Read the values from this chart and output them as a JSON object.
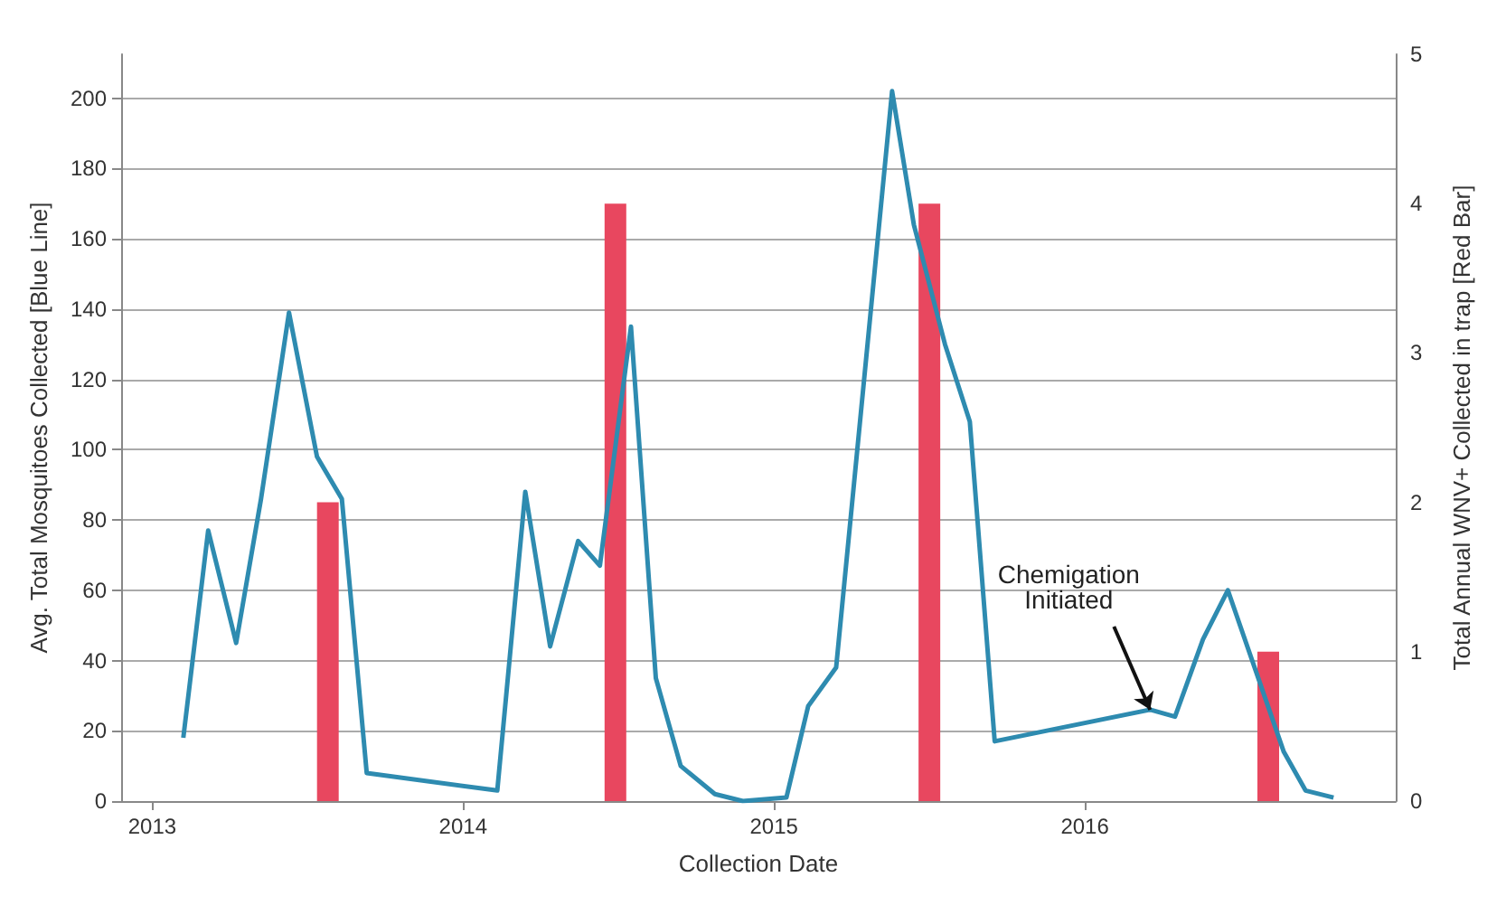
{
  "chart_data": {
    "type": "line",
    "xlabel": "Collection Date",
    "ylabel": "Avg. Total Mosquitoes Collected [Blue Line]",
    "y2label": "Total Annual WNV+ Collected in trap [Red Bar]",
    "xlim": [
      2012.9,
      2017
    ],
    "xticks": [
      {
        "value": 2013,
        "label": "2013"
      },
      {
        "value": 2014,
        "label": "2014"
      },
      {
        "value": 2015,
        "label": "2015"
      },
      {
        "value": 2016,
        "label": "2016"
      }
    ],
    "ylim": [
      0,
      212.5
    ],
    "yticks": [
      0,
      20,
      40,
      60,
      80,
      100,
      120,
      140,
      160,
      180,
      200
    ],
    "y2lim": [
      0,
      5
    ],
    "y2ticks": [
      0,
      1,
      2,
      3,
      4,
      5
    ],
    "grid": "y",
    "marker": "none",
    "line_style": "solid",
    "series": [
      {
        "color": "#2e8bb0",
        "x": [
          2013.1,
          2013.18,
          2013.27,
          2013.35,
          2013.44,
          2013.53,
          2013.61,
          2013.69,
          2014.11,
          2014.2,
          2014.28,
          2014.37,
          2014.44,
          2014.54,
          2014.62,
          2014.7,
          2014.81,
          2014.9,
          2015.04,
          2015.11,
          2015.2,
          2015.38,
          2015.45,
          2015.55,
          2015.63,
          2015.71,
          2016.21,
          2016.29,
          2016.38,
          2016.46,
          2016.64,
          2016.71,
          2016.8
        ],
        "values": [
          18,
          77,
          45,
          86,
          139,
          98,
          86,
          8,
          3,
          88,
          44,
          74,
          67,
          135,
          35,
          10,
          2,
          0,
          1,
          27,
          38,
          202,
          164,
          130,
          108,
          17,
          26,
          24,
          46,
          60,
          14,
          3,
          1
        ]
      },
      {
        "type": "bar",
        "axis": "y2",
        "color": "#e8475f",
        "x": [
          2013.565,
          2014.49,
          2015.5,
          2016.59
        ],
        "values": [
          2,
          4,
          4,
          1
        ]
      }
    ],
    "annotations": [
      {
        "text": "Chemigation\nInitiated",
        "x": 2016.21,
        "y": 26
      }
    ]
  }
}
